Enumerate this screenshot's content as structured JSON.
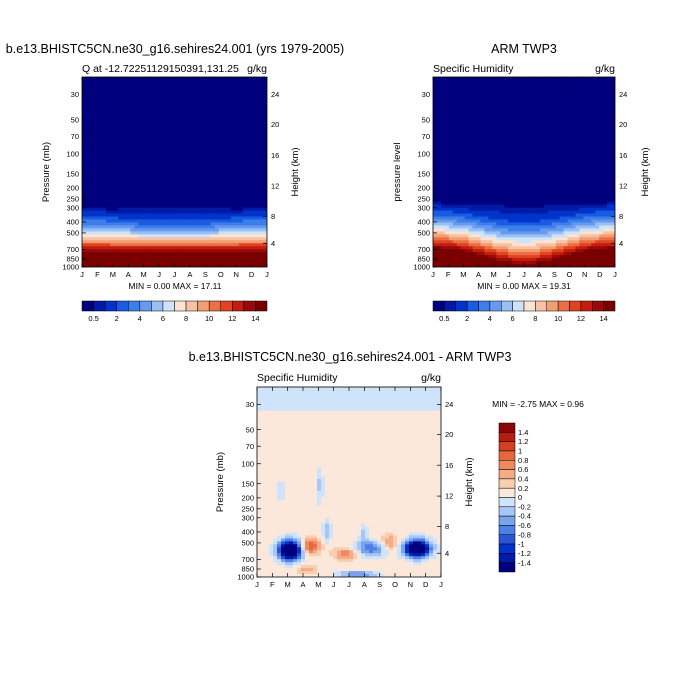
{
  "colors": {
    "levels": [
      "#00007f",
      "#001aa6",
      "#0033cc",
      "#1a5ce0",
      "#3d7fea",
      "#6699f0",
      "#99bff5",
      "#cce3fa",
      "#fbe3d3",
      "#f7c2a3",
      "#f29e73",
      "#ec6e45",
      "#e0441f",
      "#c21d10",
      "#990a08",
      "#7a0000"
    ],
    "diff_levels": [
      "#00007f",
      "#001aa6",
      "#0033cc",
      "#2a55d6",
      "#4d7fe6",
      "#7aa3ee",
      "#a8c6f5",
      "#cfe3fa",
      "#fbe8da",
      "#f8cdb0",
      "#f4ac86",
      "#ef8a5e",
      "#e8663e",
      "#d43f22",
      "#b51d10",
      "#8a0606"
    ]
  },
  "chart_data": [
    {
      "type": "heatmap",
      "title": "b.e13.BHISTC5CN.ne30_g16.sehires24.001 (yrs 1979-2005)",
      "left_string": "Q at -12.72251129150391,131.25",
      "right_string": "g/kg",
      "ylabel": "Pressure (mb)",
      "ylabel_right": "Height (km)",
      "months": [
        "J",
        "F",
        "M",
        "A",
        "M",
        "J",
        "J",
        "A",
        "S",
        "O",
        "N",
        "D",
        "J"
      ],
      "pressure_ticks": [
        "30",
        "50",
        "70",
        "100",
        "150",
        "200",
        "250",
        "300",
        "400",
        "500",
        "700",
        "850",
        "1000"
      ],
      "height_ticks": [
        "24",
        "20",
        "16",
        "12",
        "8",
        "4"
      ],
      "minmax": "MIN =   0.00 MAX =  17.11",
      "min": 0.0,
      "max": 17.11,
      "levels": [
        0.5,
        1,
        2,
        3,
        4,
        5,
        6,
        7,
        8,
        9,
        10,
        11,
        12,
        13,
        14
      ],
      "colorbar_labels": [
        "0.5",
        "2",
        "4",
        "6",
        "8",
        "10",
        "12",
        "14"
      ]
    },
    {
      "type": "heatmap",
      "title": "ARM TWP3",
      "left_string": "Specific Humidity",
      "right_string": "g/kg",
      "ylabel": "pressure level",
      "ylabel_right": "Height (km)",
      "months": [
        "J",
        "F",
        "M",
        "A",
        "M",
        "J",
        "J",
        "A",
        "S",
        "O",
        "N",
        "D",
        "J"
      ],
      "pressure_ticks": [
        "30",
        "50",
        "70",
        "100",
        "150",
        "200",
        "250",
        "300",
        "400",
        "500",
        "700",
        "850",
        "1000"
      ],
      "height_ticks": [
        "24",
        "20",
        "16",
        "12",
        "8",
        "4"
      ],
      "minmax": "MIN =   0.00 MAX =  19.31",
      "min": 0.0,
      "max": 19.31,
      "levels": [
        0.5,
        1,
        2,
        3,
        4,
        5,
        6,
        7,
        8,
        9,
        10,
        11,
        12,
        13,
        14
      ],
      "colorbar_labels": [
        "0.5",
        "2",
        "4",
        "6",
        "8",
        "10",
        "12",
        "14"
      ]
    },
    {
      "type": "heatmap",
      "title": "b.e13.BHISTC5CN.ne30_g16.sehires24.001 - ARM TWP3",
      "left_string": "Specific Humidity",
      "right_string": "g/kg",
      "ylabel": "Pressure (mb)",
      "ylabel_right": "Height (km)",
      "months": [
        "J",
        "F",
        "M",
        "A",
        "M",
        "J",
        "J",
        "A",
        "S",
        "O",
        "N",
        "D",
        "J"
      ],
      "pressure_ticks": [
        "30",
        "50",
        "70",
        "100",
        "150",
        "200",
        "250",
        "300",
        "400",
        "500",
        "700",
        "850",
        "1000"
      ],
      "height_ticks": [
        "24",
        "20",
        "16",
        "12",
        "8",
        "4"
      ],
      "minmax": "MIN = -2.75 MAX =   0.96",
      "min": -2.75,
      "max": 0.96,
      "levels": [
        -1.4,
        -1.2,
        -1,
        -0.8,
        -0.6,
        -0.4,
        -0.2,
        0,
        0.2,
        0.4,
        0.6,
        0.8,
        1,
        1.2,
        1.4
      ],
      "colorbar_labels": [
        "1.4",
        "1.2",
        "1",
        "0.8",
        "0.6",
        "0.4",
        "0.2",
        "0",
        "-0.2",
        "-0.4",
        "-0.6",
        "-0.8",
        "-1",
        "-1.2",
        "-1.4"
      ]
    }
  ]
}
